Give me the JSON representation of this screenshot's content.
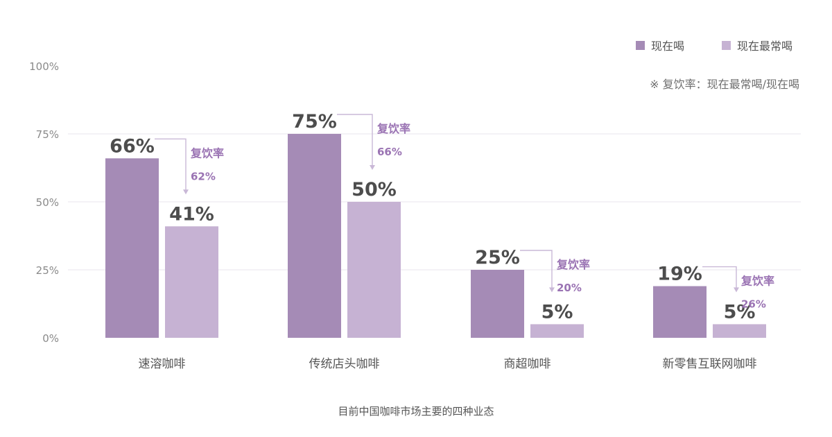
{
  "chart_data": {
    "type": "bar",
    "title": "",
    "caption": "目前中国咖啡市场主要的四种业态",
    "note": "※ 复饮率：现在最常喝/现在喝",
    "categories": [
      "速溶咖啡",
      "传统店头咖啡",
      "商超咖啡",
      "新零售互联网咖啡"
    ],
    "series": [
      {
        "name": "现在喝",
        "values": [
          66,
          75,
          25,
          19
        ],
        "color": "#a58bb6"
      },
      {
        "name": "现在最常喝",
        "values": [
          41,
          50,
          5,
          5
        ],
        "color": "#c6b2d3"
      }
    ],
    "annotations": [
      {
        "category": "速溶咖啡",
        "label": "复饮率",
        "value": "62%"
      },
      {
        "category": "传统店头咖啡",
        "label": "复饮率",
        "value": "66%"
      },
      {
        "category": "商超咖啡",
        "label": "复饮率",
        "value": "20%"
      },
      {
        "category": "新零售互联网咖啡",
        "label": "复饮率",
        "value": "26%"
      }
    ],
    "value_suffix": "%",
    "ylim": [
      0,
      100
    ],
    "yticks": [
      "0%",
      "25%",
      "50%",
      "75%",
      "100%"
    ],
    "grid": true,
    "legend_position": "top-right",
    "colors": {
      "accent_text": "#9a73b3",
      "grid": "#e9e4ee"
    }
  }
}
